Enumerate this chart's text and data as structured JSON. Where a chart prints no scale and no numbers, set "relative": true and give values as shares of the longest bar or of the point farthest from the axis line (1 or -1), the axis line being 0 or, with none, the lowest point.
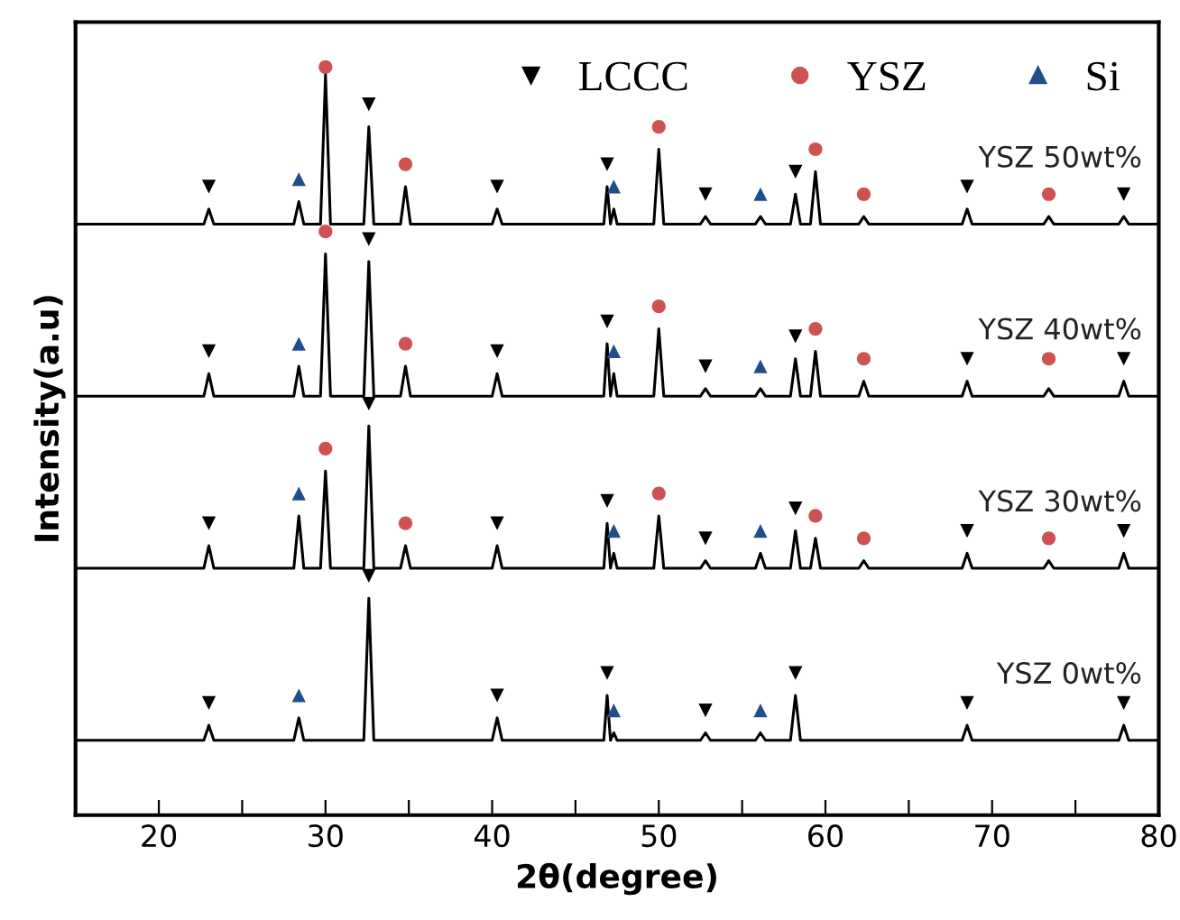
{
  "chart_data": {
    "type": "line",
    "relative": true,
    "xlabel": "2θ(degree)",
    "ylabel": "Intensity(a.u)",
    "xlim": [
      15,
      80
    ],
    "xticks": [
      20,
      {
        "value": 25,
        "label": null
      },
      30,
      {
        "value": 35,
        "label": null
      },
      40,
      {
        "value": 45,
        "label": null
      },
      50,
      {
        "value": 55,
        "label": null
      },
      60,
      {
        "value": 65,
        "label": null
      },
      70,
      {
        "value": 75,
        "label": null
      },
      80
    ],
    "tick_labels": "x",
    "grid": false,
    "legend": "top right",
    "marker": "none",
    "line_style": "solid",
    "x": [
      15,
      22.7,
      23.0,
      23.3,
      28.1,
      28.4,
      28.7,
      29.7,
      30.0,
      30.3,
      32.3,
      32.6,
      32.9,
      34.5,
      34.8,
      35.1,
      40.0,
      40.3,
      40.6,
      46.7,
      46.9,
      47.1,
      47.3,
      47.5,
      49.7,
      50.0,
      50.3,
      52.5,
      52.8,
      53.1,
      55.8,
      56.1,
      56.4,
      57.9,
      58.2,
      58.5,
      59.1,
      59.4,
      59.7,
      62.0,
      62.3,
      62.6,
      68.2,
      68.5,
      68.8,
      73.1,
      73.4,
      73.7,
      77.6,
      77.9,
      78.2,
      80
    ],
    "annotations": [
      "YSZ 50wt%",
      "YSZ 40wt%",
      "YSZ 30wt%",
      "YSZ 0wt%"
    ],
    "series": [
      {
        "color": "#000000",
        "values": [
          0.79,
          0.79,
          0.81,
          0.79,
          0.79,
          0.82,
          0.79,
          0.79,
          0.99,
          0.79,
          0.79,
          0.92,
          0.79,
          0.79,
          0.84,
          0.79,
          0.79,
          0.81,
          0.79,
          0.79,
          0.84,
          0.79,
          0.81,
          0.79,
          0.79,
          0.89,
          0.79,
          0.79,
          0.8,
          0.79,
          0.79,
          0.8,
          0.79,
          0.79,
          0.83,
          0.79,
          0.79,
          0.86,
          0.79,
          0.79,
          0.8,
          0.79,
          0.79,
          0.81,
          0.79,
          0.79,
          0.8,
          0.79,
          0.79,
          0.8,
          0.79,
          0.79
        ]
      },
      {
        "color": "#000000",
        "values": [
          0.56,
          0.56,
          0.59,
          0.56,
          0.56,
          0.6,
          0.56,
          0.56,
          0.75,
          0.56,
          0.56,
          0.74,
          0.56,
          0.56,
          0.6,
          0.56,
          0.56,
          0.59,
          0.56,
          0.56,
          0.63,
          0.56,
          0.59,
          0.56,
          0.56,
          0.65,
          0.56,
          0.56,
          0.57,
          0.56,
          0.56,
          0.57,
          0.56,
          0.56,
          0.61,
          0.56,
          0.56,
          0.62,
          0.56,
          0.56,
          0.58,
          0.56,
          0.56,
          0.58,
          0.56,
          0.56,
          0.57,
          0.56,
          0.56,
          0.58,
          0.56,
          0.56
        ]
      },
      {
        "color": "#000000",
        "values": [
          0.33,
          0.33,
          0.36,
          0.33,
          0.33,
          0.4,
          0.33,
          0.33,
          0.46,
          0.33,
          0.33,
          0.52,
          0.33,
          0.33,
          0.36,
          0.33,
          0.33,
          0.36,
          0.33,
          0.33,
          0.39,
          0.33,
          0.35,
          0.33,
          0.33,
          0.4,
          0.33,
          0.33,
          0.34,
          0.33,
          0.33,
          0.35,
          0.33,
          0.33,
          0.38,
          0.33,
          0.33,
          0.37,
          0.33,
          0.33,
          0.34,
          0.33,
          0.33,
          0.35,
          0.33,
          0.33,
          0.34,
          0.33,
          0.33,
          0.35,
          0.33,
          0.33
        ]
      },
      {
        "color": "#000000",
        "values": [
          0.1,
          0.1,
          0.12,
          0.1,
          0.1,
          0.13,
          0.1,
          0.1,
          0.1,
          0.1,
          0.1,
          0.29,
          0.1,
          0.1,
          0.1,
          0.1,
          0.1,
          0.13,
          0.1,
          0.1,
          0.16,
          0.1,
          0.11,
          0.1,
          0.1,
          0.1,
          0.1,
          0.1,
          0.11,
          0.1,
          0.1,
          0.11,
          0.1,
          0.1,
          0.16,
          0.1,
          0.1,
          0.1,
          0.1,
          0.1,
          0.1,
          0.1,
          0.1,
          0.12,
          0.1,
          0.1,
          0.1,
          0.1,
          0.1,
          0.12,
          0.1,
          0.1
        ]
      },
      {
        "name": "LCCC",
        "type": "scatter",
        "marker": "triangle_down",
        "color": "#000000",
        "x": [
          23.0,
          32.6,
          40.3,
          46.9,
          52.8,
          58.2,
          68.5,
          77.9,
          23.0,
          32.6,
          40.3,
          46.9,
          52.8,
          58.2,
          68.5,
          77.9,
          23.0,
          32.6,
          40.3,
          46.9,
          52.8,
          58.2,
          68.5,
          77.9,
          23.0,
          32.6,
          40.3,
          46.9,
          52.8,
          58.2,
          68.5,
          77.9
        ],
        "values": [
          0.84,
          0.95,
          0.84,
          0.87,
          0.83,
          0.86,
          0.84,
          0.83,
          0.62,
          0.77,
          0.62,
          0.66,
          0.6,
          0.64,
          0.61,
          0.61,
          0.39,
          0.55,
          0.39,
          0.42,
          0.37,
          0.41,
          0.38,
          0.38,
          0.15,
          0.32,
          0.16,
          0.19,
          0.14,
          0.19,
          0.15,
          0.15
        ]
      },
      {
        "name": "YSZ",
        "type": "scatter",
        "marker": "circle",
        "color": "#cd5353",
        "x": [
          30.0,
          34.8,
          50.0,
          59.4,
          62.3,
          73.4,
          30.0,
          34.8,
          50.0,
          59.4,
          62.3,
          73.4,
          30.0,
          34.8,
          50.0,
          59.4,
          62.3,
          73.4
        ],
        "values": [
          1.0,
          0.87,
          0.92,
          0.89,
          0.83,
          0.83,
          0.78,
          0.63,
          0.68,
          0.65,
          0.61,
          0.61,
          0.49,
          0.39,
          0.43,
          0.4,
          0.37,
          0.37
        ]
      },
      {
        "name": "Si",
        "type": "scatter",
        "marker": "triangle",
        "color": "#1f4e8c",
        "x": [
          28.4,
          47.3,
          56.1,
          28.4,
          47.3,
          56.1,
          28.4,
          47.3,
          56.1,
          28.4,
          47.3,
          56.1
        ],
        "values": [
          0.85,
          0.84,
          0.83,
          0.63,
          0.62,
          0.6,
          0.43,
          0.38,
          0.38,
          0.16,
          0.14,
          0.14
        ]
      }
    ]
  }
}
